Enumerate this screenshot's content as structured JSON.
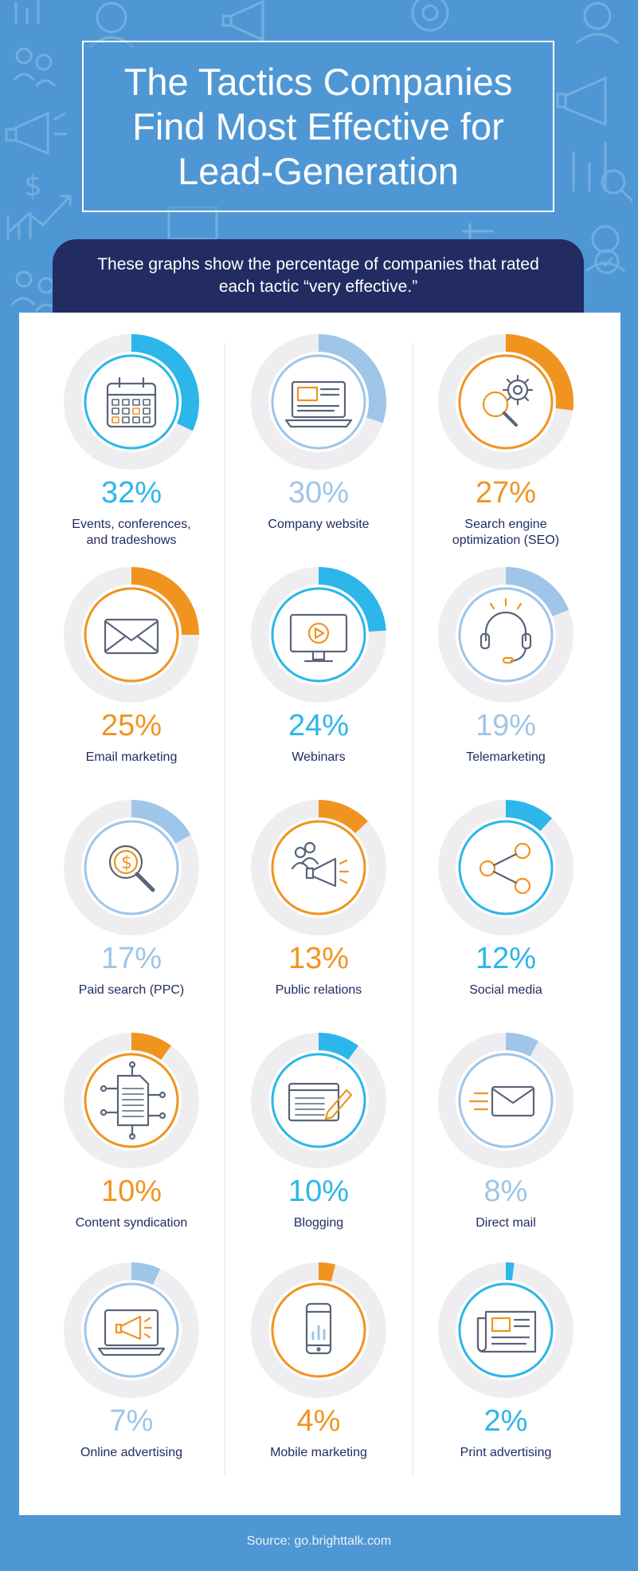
{
  "title": "The Tactics Companies Find Most Effective for Lead-Generation",
  "subtitle": "These graphs show the percentage of companies that rated each tactic “very effective.”",
  "source": "Source: go.brighttalk.com",
  "colors": {
    "background": "#4f97d4",
    "banner": "#222c62",
    "cyan": "#2cb6ea",
    "orange": "#f0941f",
    "light_blue": "#9fc5e8",
    "track": "#eeeef0",
    "icon_stroke": "#5a6478"
  },
  "chart_data": {
    "type": "donut",
    "unit": "%",
    "items": [
      {
        "label": "Events, conferences,\nand tradeshows",
        "value": 32,
        "display": "32%",
        "color": "cyan",
        "icon": "calendar-icon"
      },
      {
        "label": "Company website",
        "value": 30,
        "display": "30%",
        "color": "light_blue",
        "icon": "laptop-icon"
      },
      {
        "label": "Search engine\noptimization (SEO)",
        "value": 27,
        "display": "27%",
        "color": "orange",
        "icon": "seo-gear-magnifier-icon"
      },
      {
        "label": "Email marketing",
        "value": 25,
        "display": "25%",
        "color": "orange",
        "icon": "envelope-icon"
      },
      {
        "label": "Webinars",
        "value": 24,
        "display": "24%",
        "color": "cyan",
        "icon": "monitor-play-icon"
      },
      {
        "label": "Telemarketing",
        "value": 19,
        "display": "19%",
        "color": "light_blue",
        "icon": "headset-icon"
      },
      {
        "label": "Paid search (PPC)",
        "value": 17,
        "display": "17%",
        "color": "light_blue",
        "icon": "dollar-magnifier-icon"
      },
      {
        "label": "Public relations",
        "value": 13,
        "display": "13%",
        "color": "orange",
        "icon": "megaphone-people-icon"
      },
      {
        "label": "Social media",
        "value": 12,
        "display": "12%",
        "color": "cyan",
        "icon": "share-icon"
      },
      {
        "label": "Content syndication",
        "value": 10,
        "display": "10%",
        "color": "orange",
        "icon": "document-network-icon"
      },
      {
        "label": "Blogging",
        "value": 10,
        "display": "10%",
        "color": "cyan",
        "icon": "blog-pencil-icon"
      },
      {
        "label": "Direct mail",
        "value": 8,
        "display": "8%",
        "color": "light_blue",
        "icon": "fast-envelope-icon"
      },
      {
        "label": "Online advertising",
        "value": 7,
        "display": "7%",
        "color": "light_blue",
        "icon": "laptop-megaphone-icon"
      },
      {
        "label": "Mobile marketing",
        "value": 4,
        "display": "4%",
        "color": "orange",
        "icon": "smartphone-chart-icon"
      },
      {
        "label": "Print advertising",
        "value": 2,
        "display": "2%",
        "color": "cyan",
        "icon": "newspaper-icon"
      }
    ]
  }
}
